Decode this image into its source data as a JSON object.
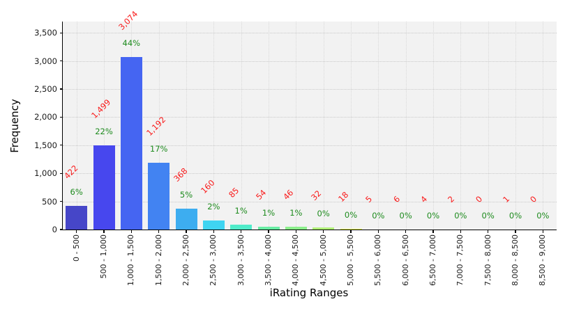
{
  "chart_data": {
    "type": "bar",
    "title": "",
    "xlabel": "iRating Ranges",
    "ylabel": "Frequency",
    "categories": [
      "0 - 500",
      "500 - 1,000",
      "1,000 - 1,500",
      "1,500 - 2,000",
      "2,000 - 2,500",
      "2,500 - 3,000",
      "3,000 - 3,500",
      "3,500 - 4,000",
      "4,000 - 4,500",
      "4,500 - 5,000",
      "5,000 - 5,500",
      "5,500 - 6,000",
      "6,000 - 6,500",
      "6,500 - 7,000",
      "7,000 - 7,500",
      "7,500 - 8,000",
      "8,000 - 8,500",
      "8,500 - 9,000"
    ],
    "values": [
      422,
      1499,
      3074,
      1192,
      368,
      160,
      85,
      54,
      46,
      32,
      18,
      5,
      6,
      4,
      2,
      0,
      1,
      0
    ],
    "value_labels": [
      "422",
      "1,499",
      "3,074",
      "1,192",
      "368",
      "160",
      "85",
      "54",
      "46",
      "32",
      "18",
      "5",
      "6",
      "4",
      "2",
      "0",
      "1",
      "0"
    ],
    "pct_labels": [
      "6%",
      "22%",
      "44%",
      "17%",
      "5%",
      "2%",
      "1%",
      "1%",
      "1%",
      "0%",
      "0%",
      "0%",
      "0%",
      "0%",
      "0%",
      "0%",
      "0%",
      "0%"
    ],
    "bar_colors": [
      "#4646c8",
      "#4747ee",
      "#4565f2",
      "#4283f2",
      "#3dadf0",
      "#3fd4f1",
      "#50ecca",
      "#68eda4",
      "#8bef8b",
      "#b0f077",
      "#e2f24a",
      "#f0ef3e",
      "#f8df36",
      "#fccf30",
      "#ffbe2a",
      "#ffad26",
      "#ff9c22",
      "#ff8c1e"
    ],
    "ylim": [
      0,
      3700
    ],
    "ytick_values": [
      0,
      500,
      1000,
      1500,
      2000,
      2500,
      3000,
      3500
    ],
    "ytick_labels": [
      "0",
      "500",
      "1,000",
      "1,500",
      "2,000",
      "2,500",
      "3,000",
      "3,500"
    ],
    "grid": true,
    "legend_position": "none",
    "colors": {
      "plot_background": "#f2f2f2",
      "value_label": "#f91a1a",
      "pct_label": "#1e8b1e",
      "axis": "#000000"
    }
  }
}
